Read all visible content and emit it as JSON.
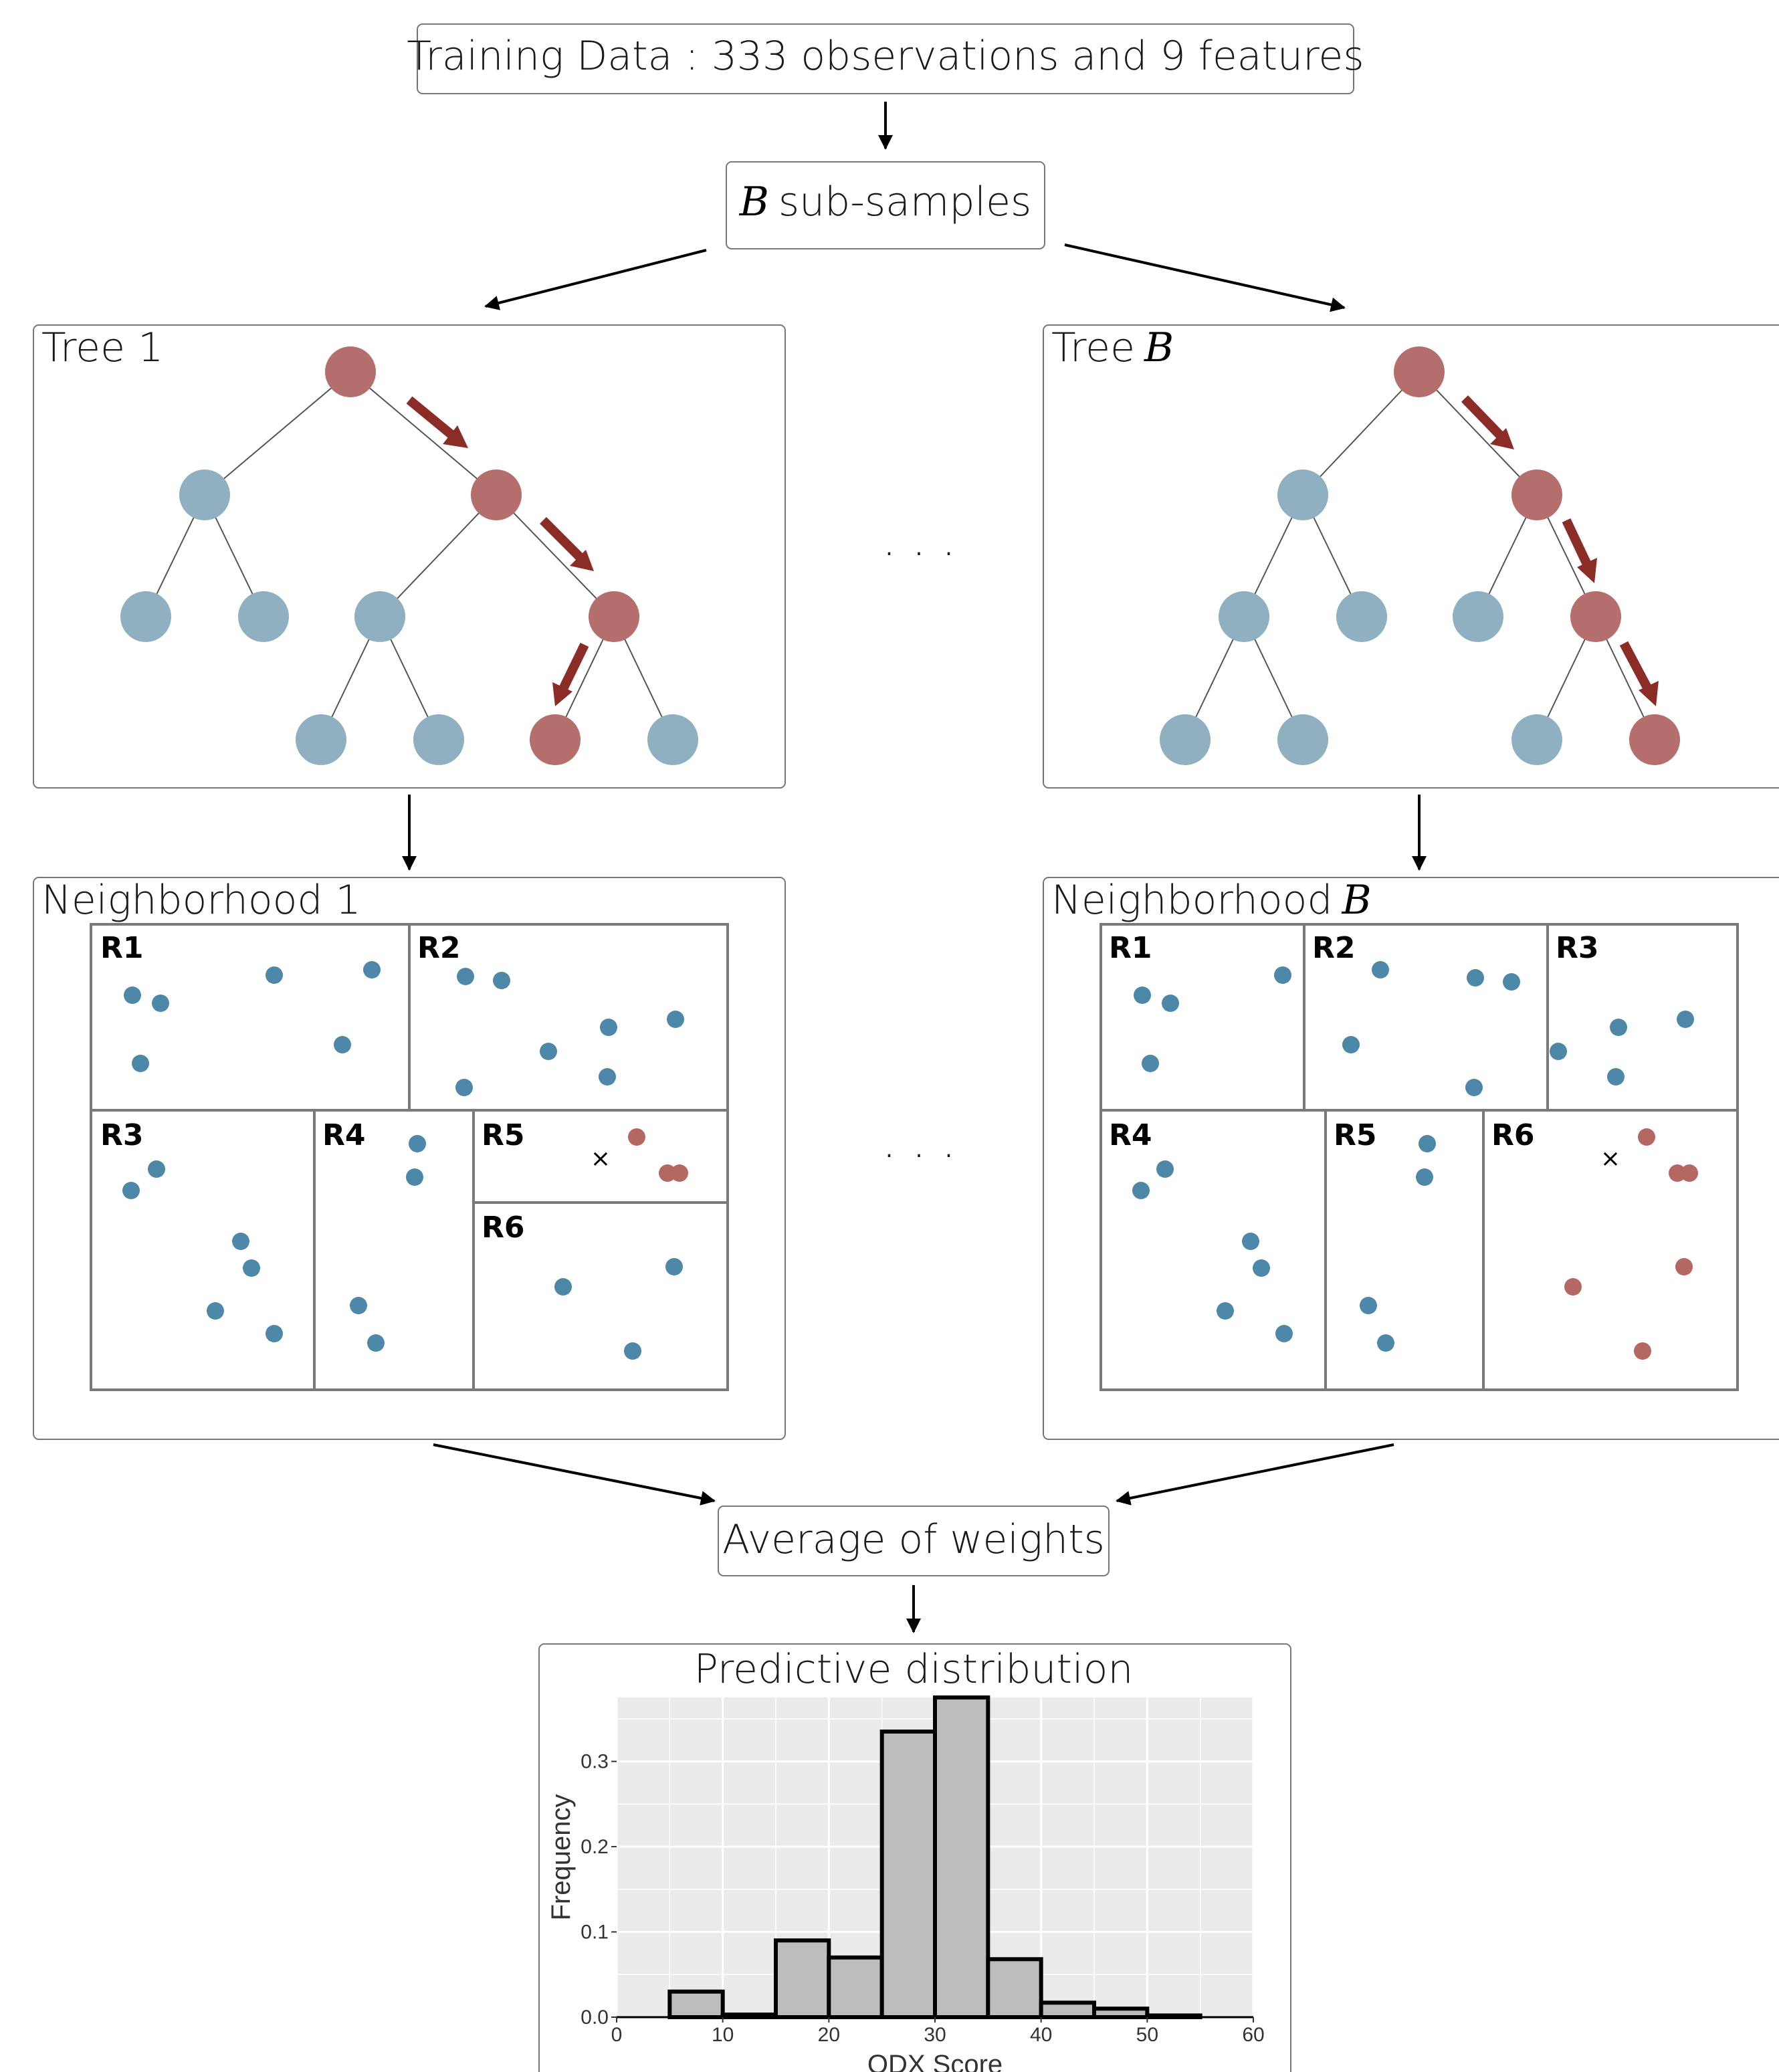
{
  "header": {
    "training_data": "Training Data : 333 observations and 9 features",
    "subsamples_var": "B",
    "subsamples_text": "sub-samples"
  },
  "trees": {
    "tree1_title": "Tree 1",
    "treeB_prefix": "Tree",
    "treeB_var": "B",
    "ellipsis": ". . ."
  },
  "neighborhoods": {
    "n1_title": "Neighborhood 1",
    "nB_prefix": "Neighborhood",
    "nB_var": "B",
    "ellipsis": ". . .",
    "region_labels_1": [
      "R1",
      "R2",
      "R3",
      "R4",
      "R5",
      "R6"
    ],
    "region_labels_B": [
      "R1",
      "R2",
      "R3",
      "R4",
      "R5",
      "R6"
    ],
    "query_marker": "×"
  },
  "average": {
    "label": "Average of weights"
  },
  "histogram": {
    "title": "Predictive distribution",
    "chart_data": {
      "type": "bar",
      "title": "Predictive distribution",
      "xlabel": "ODX Score",
      "ylabel": "Frequency",
      "bin_width": 5,
      "bins": [
        5,
        10,
        15,
        20,
        25,
        30,
        35,
        40,
        45,
        50
      ],
      "values": [
        0.03,
        0.003,
        0.09,
        0.07,
        0.335,
        0.375,
        0.068,
        0.017,
        0.01,
        0.002
      ],
      "xlim": [
        0,
        60
      ],
      "ylim": [
        0,
        0.375
      ],
      "x_ticks": [
        "0",
        "10",
        "20",
        "30",
        "40",
        "50",
        "60"
      ],
      "y_ticks": [
        "0.0",
        "0.1",
        "0.2",
        "0.3"
      ],
      "grid": true
    }
  },
  "colors": {
    "red_node": "#b46e6b",
    "blue_node": "#8fb0c0",
    "arrow_red": "#8b2c26",
    "blue_point": "#4e88a8",
    "red_point": "#b56764",
    "hist_fill": "#bdbdbd",
    "hist_bg": "#ebebeb"
  }
}
